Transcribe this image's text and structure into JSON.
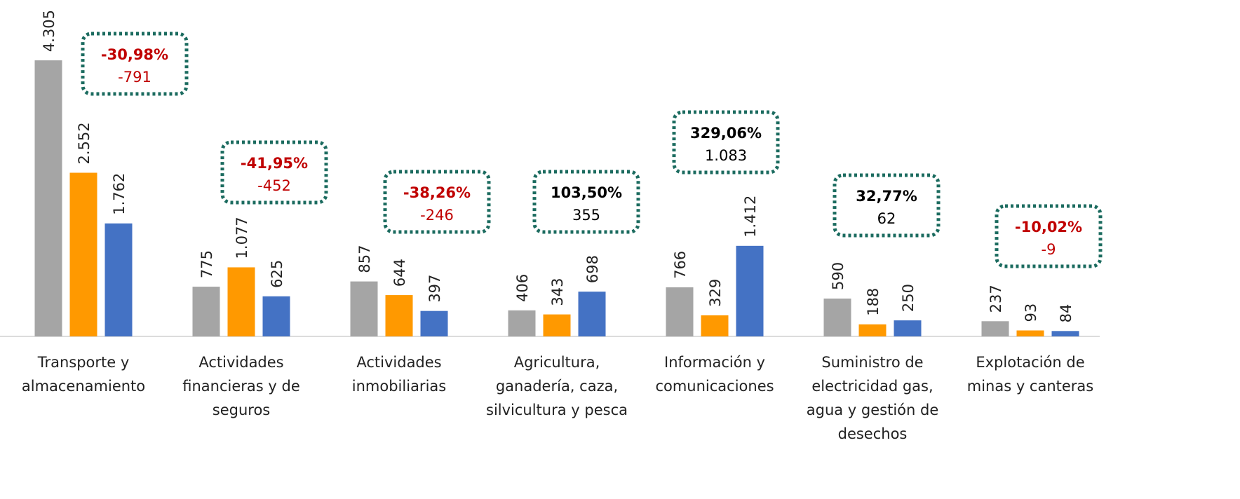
{
  "chart_data": {
    "type": "bar",
    "categories": [
      "Transporte y almacenamiento",
      "Actividades financieras y de seguros",
      "Actividades inmobiliarias",
      "Agricultura, ganadería, caza, silvicultura y pesca",
      "Información y comunicaciones",
      "Suministro de electricidad gas, agua y gestión de desechos",
      "Explotación de minas y canteras"
    ],
    "series": [
      {
        "color": "#a5a5a5",
        "values": [
          4305,
          775,
          857,
          406,
          766,
          590,
          237
        ],
        "value_labels": [
          "4.305",
          "775",
          "857",
          "406",
          "766",
          "590",
          "237"
        ]
      },
      {
        "color": "#ff9900",
        "values": [
          2552,
          1077,
          644,
          343,
          329,
          188,
          93
        ],
        "value_labels": [
          "2.552",
          "1.077",
          "644",
          "343",
          "329",
          "188",
          "93"
        ]
      },
      {
        "color": "#4472c4",
        "values": [
          1762,
          625,
          397,
          698,
          1412,
          250,
          84
        ],
        "value_labels": [
          "1.762",
          "625",
          "397",
          "698",
          "1.412",
          "250",
          "84"
        ]
      }
    ],
    "annotations": [
      {
        "percent": "-30,98%",
        "difference": "-791",
        "color": "#c00000"
      },
      {
        "percent": "-41,95%",
        "difference": "-452",
        "color": "#c00000"
      },
      {
        "percent": "-38,26%",
        "difference": "-246",
        "color": "#c00000"
      },
      {
        "percent": "103,50%",
        "difference": "355",
        "color": "#000000"
      },
      {
        "percent": "329,06%",
        "difference": "1.083",
        "color": "#000000"
      },
      {
        "percent": "32,77%",
        "difference": "62",
        "color": "#000000"
      },
      {
        "percent": "-10,02%",
        "difference": "-9",
        "color": "#c00000"
      }
    ],
    "ylim": [
      0,
      5000
    ]
  }
}
